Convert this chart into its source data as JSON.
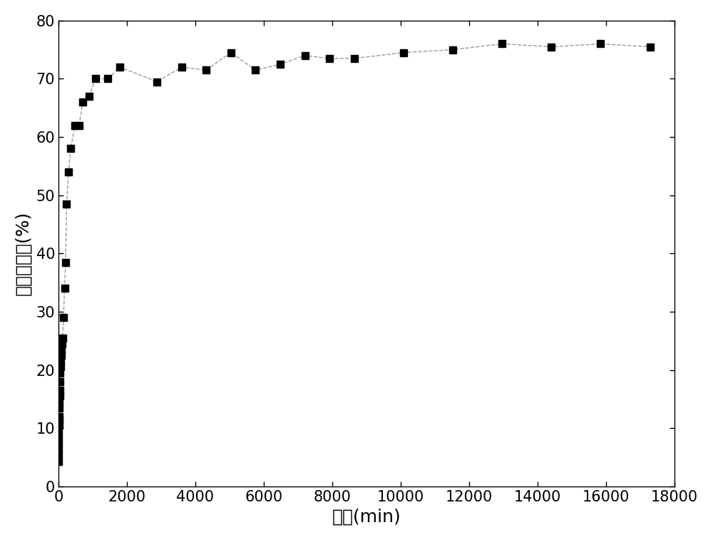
{
  "x": [
    2,
    4,
    6,
    8,
    10,
    12,
    15,
    18,
    20,
    25,
    30,
    35,
    40,
    45,
    50,
    60,
    70,
    80,
    90,
    100,
    120,
    150,
    180,
    210,
    240,
    300,
    360,
    480,
    600,
    720,
    900,
    1080,
    1440,
    1800,
    2880,
    3600,
    4320,
    5040,
    5760,
    6480,
    7200,
    7920,
    8640,
    10080,
    11520,
    12960,
    14400,
    15840,
    17280
  ],
  "y": [
    4.2,
    5.5,
    6.5,
    7.5,
    8.5,
    9.5,
    10.5,
    11.5,
    12.0,
    13.5,
    14.5,
    15.5,
    16.5,
    18.0,
    19.5,
    20.5,
    21.5,
    22.5,
    23.5,
    24.5,
    25.5,
    29.0,
    34.0,
    38.5,
    48.5,
    54.0,
    58.0,
    62.0,
    62.0,
    66.0,
    67.0,
    70.0,
    70.0,
    72.0,
    69.5,
    72.0,
    71.5,
    74.5,
    71.5,
    72.5,
    74.0,
    73.5,
    73.5,
    74.5,
    75.0,
    76.0,
    75.5,
    76.0,
    75.5
  ],
  "xlabel": "时间(min)",
  "ylabel": "药物释放量(%)",
  "xlim": [
    0,
    18000
  ],
  "ylim": [
    0,
    80
  ],
  "xticks": [
    0,
    2000,
    4000,
    6000,
    8000,
    10000,
    12000,
    14000,
    16000,
    18000
  ],
  "yticks": [
    0,
    10,
    20,
    30,
    40,
    50,
    60,
    70,
    80
  ],
  "line_color": "#999999",
  "marker_color": "#000000",
  "marker_size": 7,
  "line_style": "--",
  "line_width": 1.0,
  "xlabel_fontsize": 18,
  "ylabel_fontsize": 18,
  "tick_fontsize": 15,
  "background_color": "#ffffff"
}
